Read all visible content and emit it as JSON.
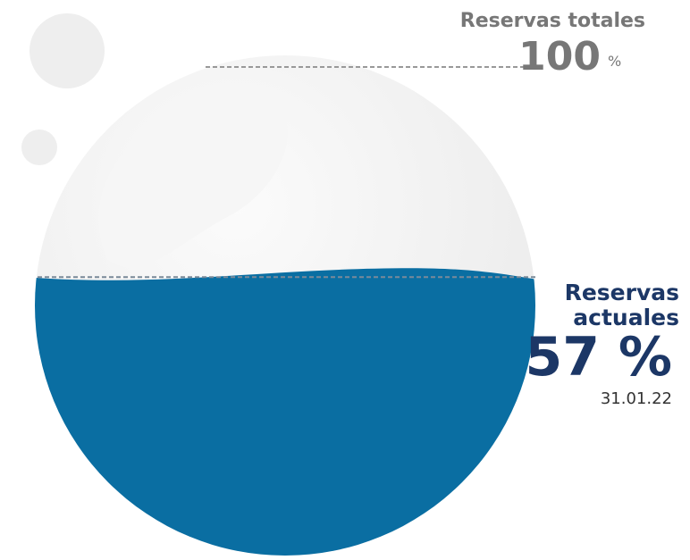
{
  "chart_data": {
    "type": "fill-gauge",
    "total": {
      "label": "Reservas totales",
      "value": 100,
      "unit": "%"
    },
    "current": {
      "label": "Reservas actuales",
      "value": 57,
      "value_label": "57 %",
      "date": "31.01.22"
    },
    "color": "#0a6ea2"
  }
}
